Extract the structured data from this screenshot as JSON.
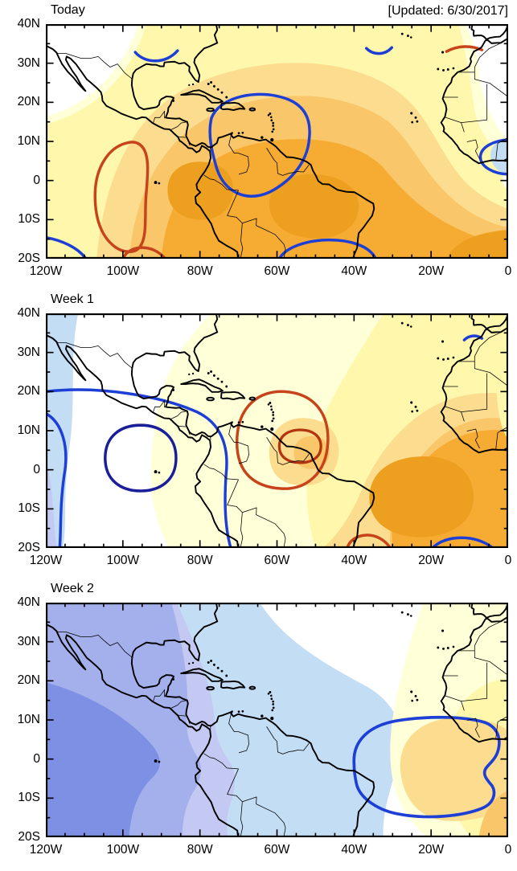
{
  "header": {
    "updated_label": "[Updated: 6/30/2017]"
  },
  "chart_data": {
    "type": "heatmap",
    "subtype": "filled-contour-anomaly-maps",
    "x_tick_labels": [
      "120W",
      "100W",
      "80W",
      "60W",
      "40W",
      "20W",
      "0"
    ],
    "y_tick_labels": [
      "40N",
      "30N",
      "20N",
      "10N",
      "0",
      "10S",
      "20S"
    ],
    "x_axis": {
      "min": -120,
      "max": 0,
      "major_step_deg": 20,
      "minor_step_deg": 5,
      "unit": "longitude"
    },
    "y_axis": {
      "min": -20,
      "max": 40,
      "major_step_deg": 10,
      "minor_step_deg": 5,
      "unit": "latitude"
    },
    "grid": false,
    "legend": "none shown",
    "panels": [
      {
        "title": "Today",
        "shading": "Positive (yellow/orange) anomalies cover most of Central and South America and the tropical Atlantic; strongest orange centered near 85W,0 and 50W-35W,5S-15S extending to the bottom-right corner; white (neutral) in the northwest corner and over the Sahara; a small light-blue negative patch at the Gulf of Guinea near the right edge.",
        "contours": [
          "blue arc over Texas / Gulf coast near 97W,33N",
          "short blue arc near 45W,34N",
          "large blue closed contour over the Caribbean and northern South America (78W-55W, 22N-5S)",
          "blue arc crossing the bottom edge near 57W-33W,20S",
          "blue arc at the bottom-left corner near 118W,18S",
          "blue oval at the right edge around the Gulf of Guinea patch (5W,6N)",
          "red elongated closed contour near 105W, 10S-20S with a second red arc at the bottom edge",
          "short red arc over Morocco near 8W,33N"
        ]
      },
      {
        "title": "Week 1",
        "shading": "Negative (light blue/periwinkle) band along the far west (Pacific) edge; white over Mexico, the Gulf of Mexico and the eastern Pacific; positive yellow-to-orange anomalies east of ~80W, strongest over the tropical Atlantic near 25W-10W,0-15S and over West Africa near Senegal/Guinea; amber pocket around Trinidad (62W,8N).",
        "contours": [
          "blue contour from the left edge at 20N sweeping southeast across Mexico and Central America to the bottom edge near 72W",
          "blue contour near the left edge from 14N to the bottom edge",
          "dark navy closed contour over the eastern Pacific near 96W,3N",
          "red outer closed contour centered near 59W,7N with a darker red inner closed contour near 54W,6N",
          "red arc crossing the bottom edge near 42W,20S",
          "blue arc crossing the bottom edge near 18W-4W,20S",
          "short blue arc near the Morocco coast at 9W,33N"
        ]
      },
      {
        "title": "Week 2",
        "shading": "Broad negative (blue/periwinkle) anomalies over the eastern Pacific, Mexico, the Caribbean and western South America, deepest blue at the far left from the equator to 20S; white over the central Atlantic; pale yellow over northwest Africa and the eastern tropical Atlantic with an amber maximum near the Guinea coast and the bottom-right corner.",
        "contours": [
          "single large blue closed contour over the eastern tropical Atlantic / West African coast spanning roughly 38W-2W, 10N-13S with a notch on its eastern side"
        ]
      }
    ],
    "colors": {
      "positive_fills": [
        "#FFFFD8",
        "#FFF8AC",
        "#FCDD8F",
        "#FAC66A",
        "#F6AC33",
        "#EDA01F"
      ],
      "negative_fills": [
        "#D9EBF9",
        "#C3DDF5",
        "#C3C9F2",
        "#A3B0EC",
        "#7D90E4"
      ],
      "contour_blue": "#1D3FD6",
      "contour_navy": "#1A1F99",
      "contour_red": "#C7431B",
      "contour_dark_red": "#B2350F",
      "coastline": "#000000",
      "frame": "#000000",
      "background": "#FFFFFF"
    }
  }
}
